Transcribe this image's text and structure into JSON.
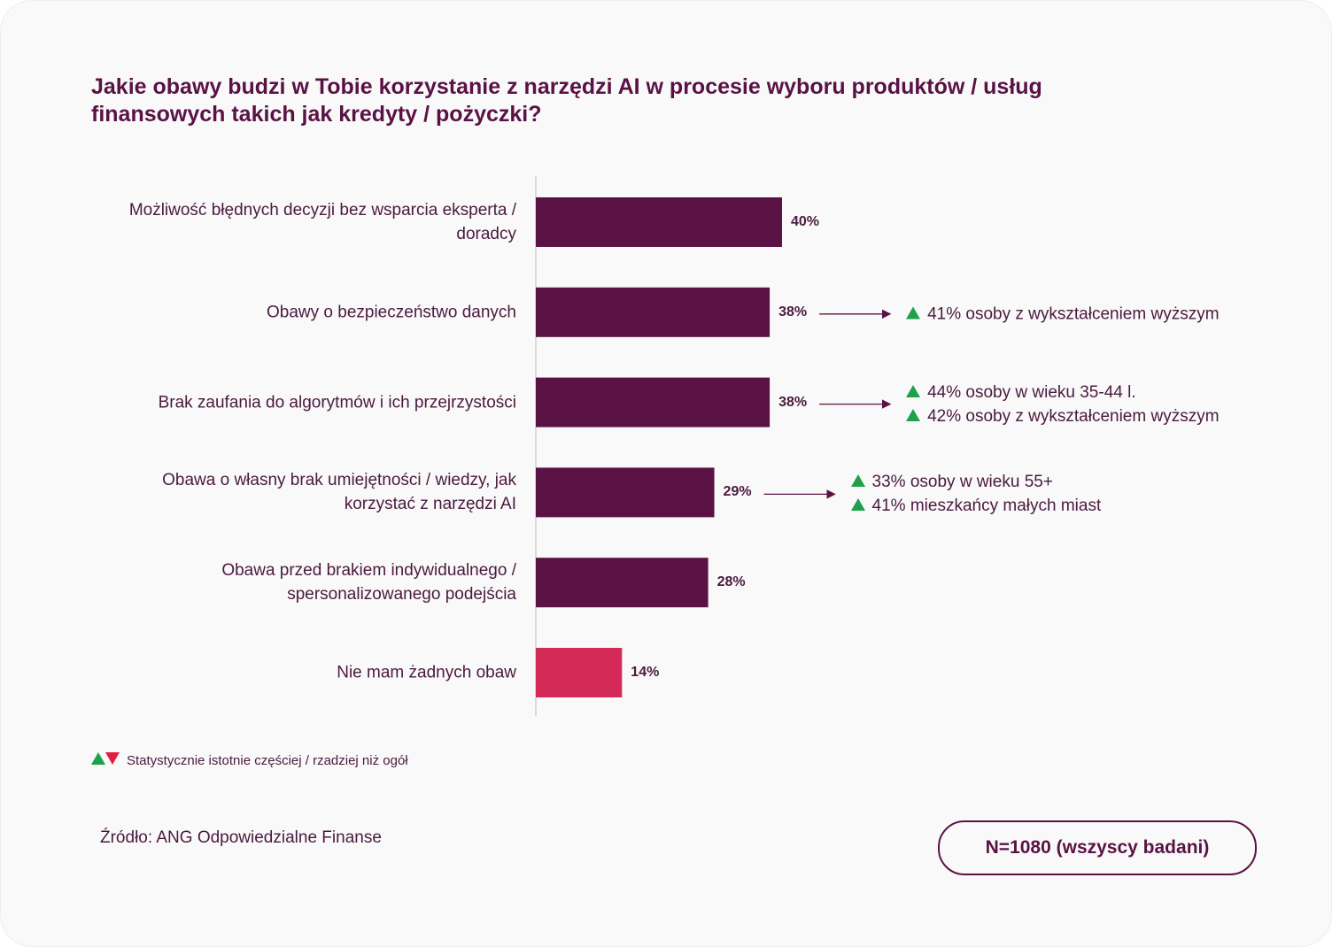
{
  "chart_data": {
    "type": "bar",
    "orientation": "horizontal",
    "title": "Jakie obawy budzi w Tobie korzystanie z narzędzi AI w procesie wyboru produktów / usług finansowych takich jak kredyty / pożyczki?",
    "categories": [
      "Możliwość błędnych decyzji bez wsparcia eksperta / doradcy",
      "Obawy o bezpieczeństwo danych",
      "Brak zaufania do algorytmów i ich przejrzystości",
      "Obawa o własny brak umiejętności / wiedzy, jak korzystać z narzędzi AI",
      "Obawa przed brakiem indywidualnego / spersonalizowanego podejścia",
      "Nie mam żadnych obaw"
    ],
    "values": [
      40,
      38,
      38,
      29,
      28,
      14
    ],
    "value_labels": [
      "40%",
      "38%",
      "38%",
      "29%",
      "28%",
      "14%"
    ],
    "colors": [
      "#5a1245",
      "#5a1245",
      "#5a1245",
      "#5a1245",
      "#5a1245",
      "#d42a57"
    ],
    "annotations": [
      null,
      [
        "41% osoby z wykształceniem wyższym"
      ],
      [
        "44% osoby w wieku 35-44 l.",
        "42% osoby z wykształceniem wyższym"
      ],
      [
        "33% osoby w wieku 55+",
        "41% mieszkańcy małych miast"
      ],
      null,
      null
    ],
    "legend_note": "Statystycznie istotnie częściej / rzadziej niż ogół",
    "source": "Źródło: ANG Odpowiedzialne Finanse",
    "sample": "N=1080 (wszyscy badani)"
  }
}
